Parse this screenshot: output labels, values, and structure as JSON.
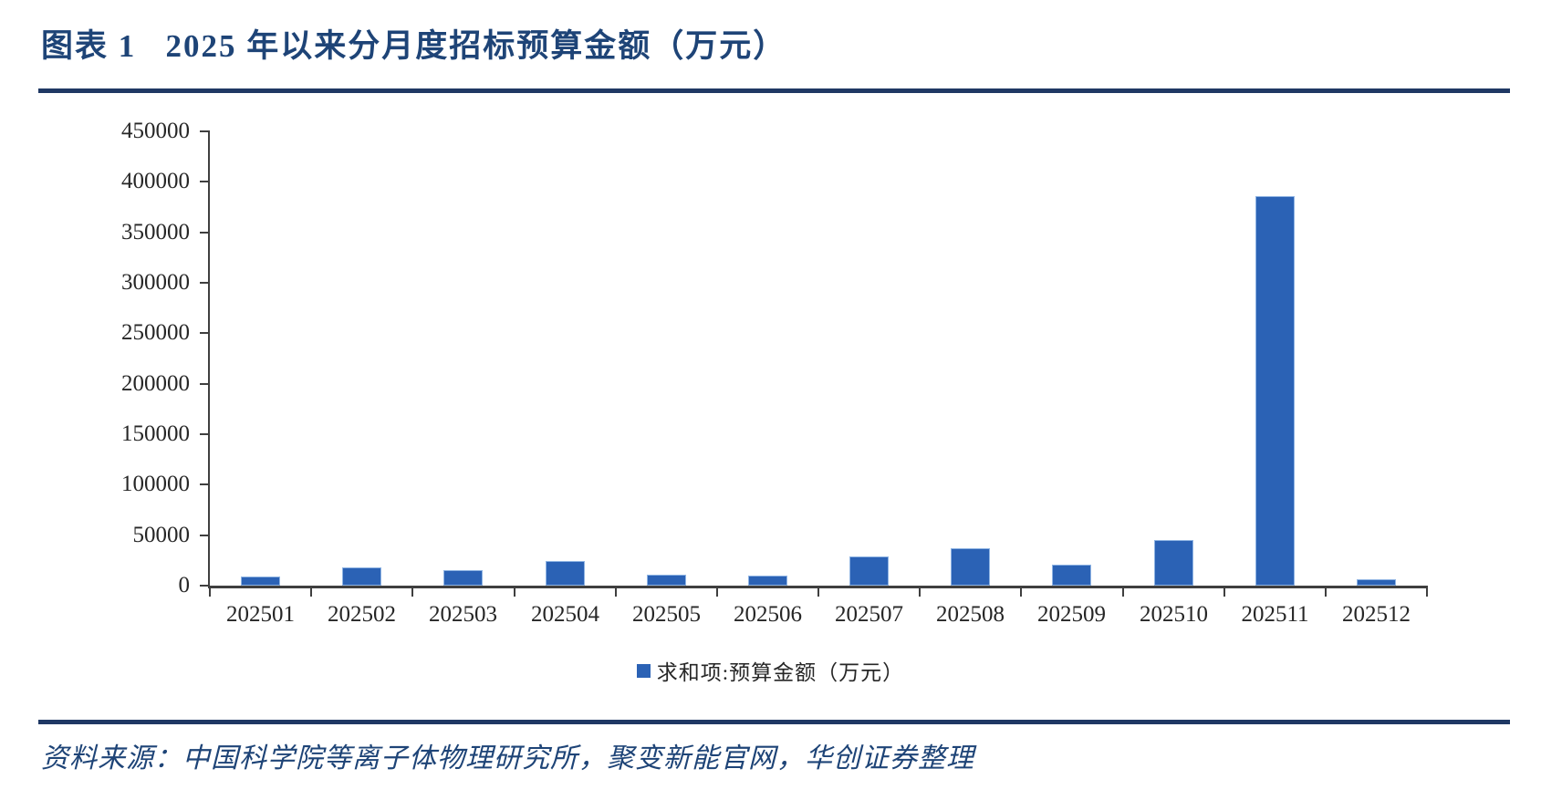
{
  "page": {
    "title": "图表 1   2025 年以来分月度招标预算金额（万元）",
    "source_note": "资料来源：中国科学院等离子体物理研究所，聚变新能官网，华创证券整理"
  },
  "colors": {
    "bar_fill": "#2B62B5",
    "bar_border": "#8FB4E3",
    "title_text": "#1E4477",
    "rule": "#1F3864",
    "axis_line": "#3F3F3F",
    "axis_text": "#262626"
  },
  "chart_data": {
    "type": "bar",
    "title": "2025 年以来分月度招标预算金额（万元）",
    "categories": [
      "202501",
      "202502",
      "202503",
      "202504",
      "202505",
      "202506",
      "202507",
      "202508",
      "202509",
      "202510",
      "202511",
      "202512"
    ],
    "values": [
      9000,
      18500,
      15500,
      24000,
      10500,
      9500,
      28500,
      37000,
      20500,
      45000,
      386000,
      6000
    ],
    "legend": "求和项:预算金额（万元）",
    "xlabel": "",
    "ylabel": "",
    "ylim": [
      0,
      450000
    ],
    "ytick_interval": 50000,
    "grid": false,
    "legend_position": "bottom"
  }
}
